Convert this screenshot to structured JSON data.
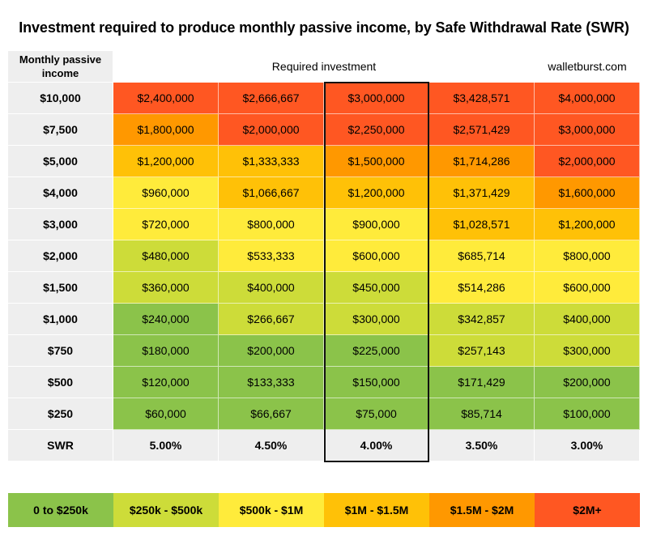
{
  "title": "Investment required to produce monthly passive income, by Safe Withdrawal Rate (SWR)",
  "row_header_label": "Monthly passive income",
  "column_group_label": "Required investment",
  "source": "walletburst.com",
  "chart_data": {
    "type": "table",
    "highlighted_column": "4.00%",
    "row_labels": [
      "$10,000",
      "$7,500",
      "$5,000",
      "$4,000",
      "$3,000",
      "$2,000",
      "$1,500",
      "$1,000",
      "$750",
      "$500",
      "$250"
    ],
    "swr_label": "SWR",
    "columns": [
      "5.00%",
      "4.50%",
      "4.00%",
      "3.50%",
      "3.00%"
    ],
    "cells": [
      [
        "$2,400,000",
        "$2,666,667",
        "$3,000,000",
        "$3,428,571",
        "$4,000,000"
      ],
      [
        "$1,800,000",
        "$2,000,000",
        "$2,250,000",
        "$2,571,429",
        "$3,000,000"
      ],
      [
        "$1,200,000",
        "$1,333,333",
        "$1,500,000",
        "$1,714,286",
        "$2,000,000"
      ],
      [
        "$960,000",
        "$1,066,667",
        "$1,200,000",
        "$1,371,429",
        "$1,600,000"
      ],
      [
        "$720,000",
        "$800,000",
        "$900,000",
        "$1,028,571",
        "$1,200,000"
      ],
      [
        "$480,000",
        "$533,333",
        "$600,000",
        "$685,714",
        "$800,000"
      ],
      [
        "$360,000",
        "$400,000",
        "$450,000",
        "$514,286",
        "$600,000"
      ],
      [
        "$240,000",
        "$266,667",
        "$300,000",
        "$342,857",
        "$400,000"
      ],
      [
        "$180,000",
        "$200,000",
        "$225,000",
        "$257,143",
        "$300,000"
      ],
      [
        "$120,000",
        "$133,333",
        "$150,000",
        "$171,429",
        "$200,000"
      ],
      [
        "$60,000",
        "$66,667",
        "$75,000",
        "$85,714",
        "$100,000"
      ]
    ],
    "legend": [
      {
        "label": "0 to $250k",
        "max": 250000,
        "color": "#8bc34a"
      },
      {
        "label": "$250k - $500k",
        "max": 500000,
        "color": "#cddc39"
      },
      {
        "label": "$500k - $1M",
        "max": 1000000,
        "color": "#ffeb3b"
      },
      {
        "label": "$1M - $1.5M",
        "max": 1500000,
        "color": "#ffc107"
      },
      {
        "label": "$1.5M - $2M",
        "max": 2000000,
        "color": "#ff9800"
      },
      {
        "label": "$2M+",
        "max": null,
        "color": "#ff5722"
      }
    ]
  }
}
